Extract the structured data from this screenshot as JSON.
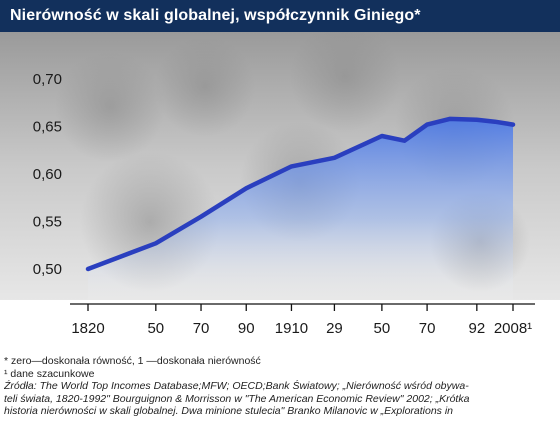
{
  "title": "Nierówność w skali globalnej, współczynnik Giniego*",
  "colors": {
    "title_bg": "#12305c",
    "line": "#2a3fbf",
    "fill": "#4a78e8"
  },
  "chart_data": {
    "type": "area",
    "x": [
      1820,
      1850,
      1870,
      1890,
      1910,
      1929,
      1950,
      1960,
      1970,
      1980,
      1992,
      2000,
      2008
    ],
    "x_tick_labels": [
      "1820",
      "50",
      "70",
      "90",
      "1910",
      "29",
      "50",
      "70",
      "92",
      "2008¹"
    ],
    "x_tick_values": [
      1820,
      1850,
      1870,
      1890,
      1910,
      1929,
      1950,
      1970,
      1992,
      2008
    ],
    "series": [
      {
        "values": [
          0.5,
          0.527,
          0.555,
          0.585,
          0.608,
          0.617,
          0.64,
          0.635,
          0.652,
          0.658,
          0.657,
          0.655,
          0.652
        ]
      }
    ],
    "y_tick_labels": [
      "0,50",
      "0,55",
      "0,60",
      "0,65",
      "0,70"
    ],
    "y_tick_values": [
      0.5,
      0.55,
      0.6,
      0.65,
      0.7
    ],
    "ylim": [
      0.5,
      0.7
    ],
    "xlim": [
      1820,
      2008
    ],
    "grid": false
  },
  "notes": {
    "note1": "* zero—doskonała równość, 1 —doskonała nierówność",
    "note2": "¹ dane szacunkowe",
    "src1": "Źródła: The World Top Incomes Database;MFW; OECD;Bank Światowy; „Nierówność wśród obywa-",
    "src2": "teli świata, 1820-1992\" Bourguignon & Morrisson w \"The American Economic Review\" 2002; „Krótka",
    "src3": "historia nierówności w skali globalnej. Dwa minione stulecia\" Branko Milanovic w „Explorations in"
  }
}
